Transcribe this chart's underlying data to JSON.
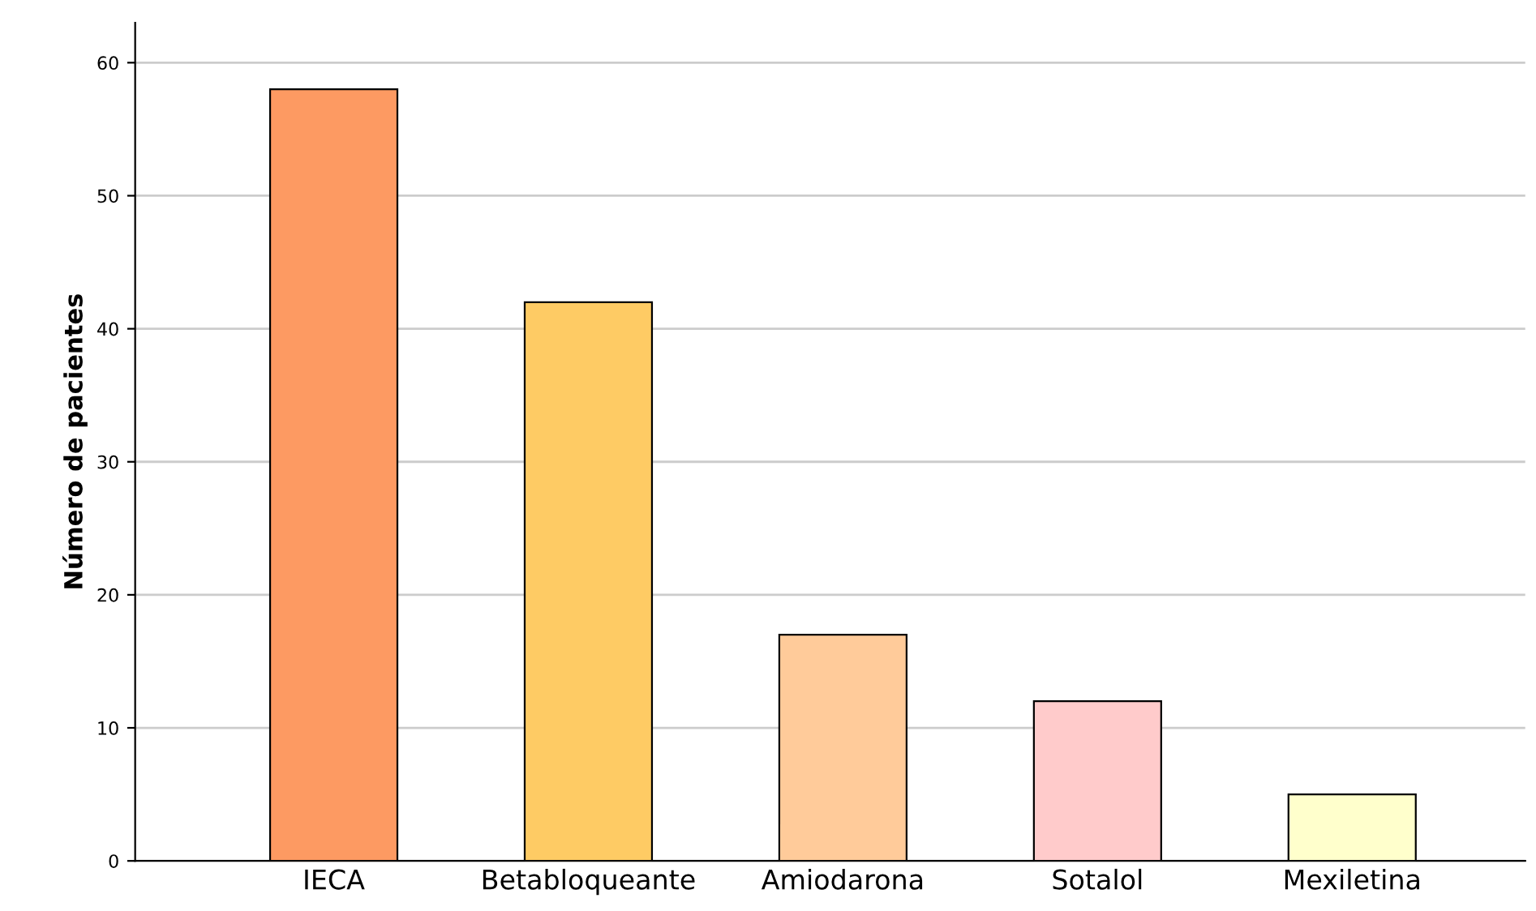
{
  "chart_data": {
    "type": "bar",
    "ylabel": "Número de pacientes",
    "categories": [
      "IECA",
      "Betabloqueante",
      "Amiodarona",
      "Sotalol",
      "Mexiletina"
    ],
    "values": [
      58,
      42,
      17,
      12,
      5
    ],
    "colors": [
      "#fd9a62",
      "#fecb64",
      "#ffcb9a",
      "#ffcbcb",
      "#ffffcc"
    ],
    "ylim": [
      0,
      63
    ],
    "yticks": [
      0,
      10,
      20,
      30,
      40,
      50,
      60
    ],
    "grid": "y",
    "legend": false
  }
}
